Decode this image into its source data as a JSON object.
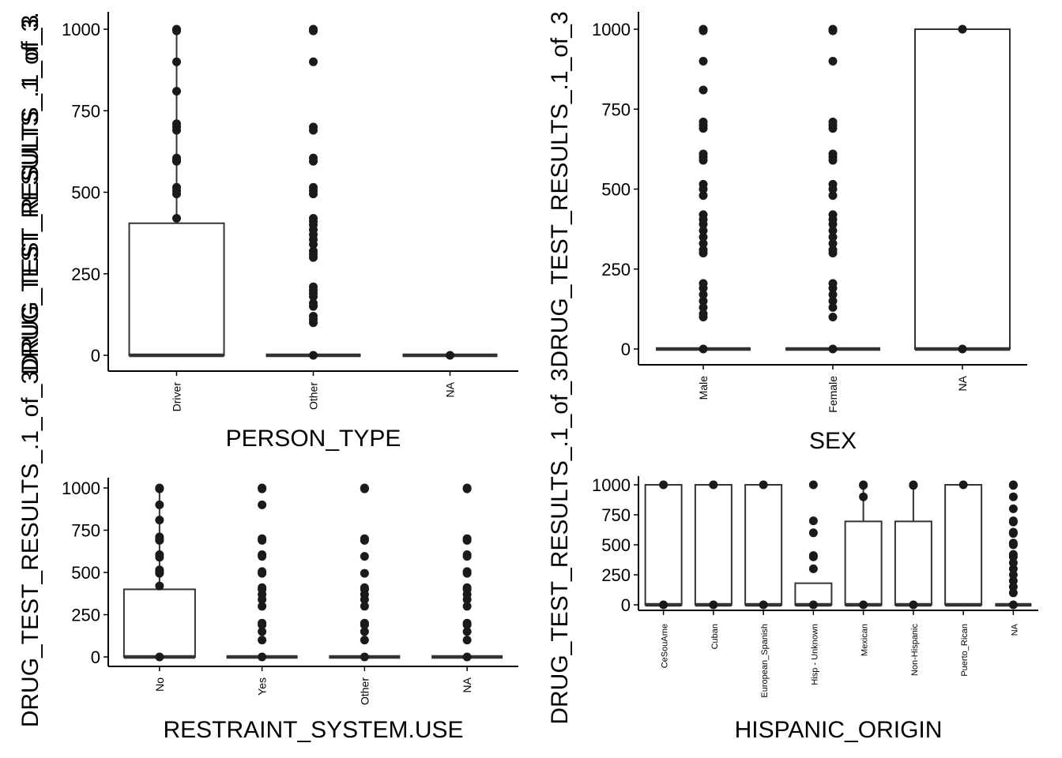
{
  "chart_data": [
    {
      "type": "box",
      "xlabel": "PERSON_TYPE",
      "ylabel": "DRUG_TEST_RESULTS_.1_of_3.",
      "ylim": [
        -45,
        1050
      ],
      "yticks": [
        0,
        250,
        500,
        750,
        1000
      ],
      "categories": [
        "Driver",
        "Other",
        "NA"
      ],
      "boxes": [
        {
          "min": 0,
          "q1": 0,
          "median": 0,
          "q3": 405,
          "max": 1000,
          "outliers": [
            420,
            495,
            505,
            515,
            595,
            600,
            605,
            690,
            700,
            710,
            810,
            900,
            995,
            1000
          ]
        },
        {
          "min": 0,
          "q1": 0,
          "median": 0,
          "q3": 0,
          "max": 0,
          "outliers": [
            0,
            100,
            110,
            120,
            150,
            160,
            180,
            190,
            200,
            210,
            300,
            310,
            320,
            340,
            355,
            370,
            385,
            400,
            410,
            420,
            495,
            505,
            515,
            595,
            605,
            690,
            700,
            900,
            995,
            1000
          ]
        },
        {
          "min": 0,
          "q1": 0,
          "median": 0,
          "q3": 0,
          "max": 0,
          "outliers": [
            0
          ]
        }
      ]
    },
    {
      "type": "box",
      "xlabel": "SEX",
      "ylabel": "DRUG_TEST_RESULTS_.1_of_3",
      "ylim": [
        -45,
        1050
      ],
      "yticks": [
        0,
        250,
        500,
        750,
        1000
      ],
      "categories": [
        "Male",
        "Female",
        "NA"
      ],
      "boxes": [
        {
          "min": 0,
          "q1": 0,
          "median": 0,
          "q3": 0,
          "max": 0,
          "outliers": [
            0,
            100,
            110,
            130,
            150,
            170,
            190,
            205,
            300,
            310,
            330,
            350,
            370,
            390,
            405,
            420,
            480,
            500,
            515,
            590,
            600,
            610,
            690,
            700,
            710,
            810,
            900,
            995,
            1000
          ]
        },
        {
          "min": 0,
          "q1": 0,
          "median": 0,
          "q3": 0,
          "max": 0,
          "outliers": [
            0,
            100,
            130,
            150,
            170,
            190,
            205,
            300,
            310,
            330,
            350,
            370,
            390,
            405,
            420,
            480,
            500,
            515,
            590,
            600,
            610,
            690,
            700,
            710,
            900,
            995,
            1000
          ]
        },
        {
          "min": 0,
          "q1": 0,
          "median": 0,
          "q3": 1000,
          "max": 1000,
          "outliers": [
            0,
            1000
          ]
        }
      ]
    },
    {
      "type": "box",
      "xlabel": "RESTRAINT_SYSTEM.USE",
      "ylabel": "DRUG_TEST_RESULTS_.1_of_3DRUG_TEST_RESULTS_.1_of_3",
      "ylim": [
        -45,
        1050
      ],
      "yticks": [
        0,
        250,
        500,
        750,
        1000
      ],
      "categories": [
        "No",
        "Yes",
        "Other",
        "NA"
      ],
      "boxes": [
        {
          "min": 0,
          "q1": 0,
          "median": 0,
          "q3": 400,
          "max": 1000,
          "outliers": [
            0,
            420,
            495,
            505,
            515,
            590,
            605,
            690,
            700,
            710,
            810,
            900,
            995,
            1000
          ]
        },
        {
          "min": 0,
          "q1": 0,
          "median": 0,
          "q3": 0,
          "max": 0,
          "outliers": [
            0,
            100,
            150,
            190,
            200,
            300,
            340,
            370,
            400,
            410,
            495,
            505,
            595,
            605,
            690,
            700,
            900,
            995,
            1000
          ]
        },
        {
          "min": 0,
          "q1": 0,
          "median": 0,
          "q3": 0,
          "max": 0,
          "outliers": [
            0,
            100,
            150,
            190,
            200,
            300,
            340,
            370,
            400,
            410,
            495,
            595,
            690,
            700,
            995,
            1000
          ]
        },
        {
          "min": 0,
          "q1": 0,
          "median": 0,
          "q3": 0,
          "max": 0,
          "outliers": [
            0,
            100,
            150,
            190,
            200,
            300,
            340,
            370,
            400,
            410,
            495,
            505,
            595,
            605,
            690,
            700,
            995,
            1000
          ]
        }
      ]
    },
    {
      "type": "box",
      "xlabel": "HISPANIC_ORIGIN",
      "ylabel": "DRUG_TEST_RESULTS_.1_of_3",
      "ylim": [
        -45,
        1050
      ],
      "yticks": [
        0,
        250,
        500,
        750,
        1000
      ],
      "categories": [
        "CeSouAme",
        "Cuban",
        "European_Spanish",
        "Hisp - Unknown",
        "Mexican",
        "Non-Hispanic",
        "Puerto_Rican",
        "NA"
      ],
      "boxes": [
        {
          "min": 0,
          "q1": 0,
          "median": 0,
          "q3": 1000,
          "max": 1000,
          "outliers": [
            0,
            1000
          ]
        },
        {
          "min": 0,
          "q1": 0,
          "median": 0,
          "q3": 1000,
          "max": 1000,
          "outliers": [
            0,
            1000
          ]
        },
        {
          "min": 0,
          "q1": 0,
          "median": 0,
          "q3": 1000,
          "max": 1000,
          "outliers": [
            0,
            1000
          ]
        },
        {
          "min": 0,
          "q1": 0,
          "median": 0,
          "q3": 180,
          "max": 180,
          "outliers": [
            0,
            300,
            400,
            410,
            600,
            700,
            1000
          ]
        },
        {
          "min": 0,
          "q1": 0,
          "median": 0,
          "q3": 695,
          "max": 1000,
          "outliers": [
            0,
            900,
            995,
            1000
          ]
        },
        {
          "min": 0,
          "q1": 0,
          "median": 0,
          "q3": 695,
          "max": 1000,
          "outliers": [
            0,
            995,
            1000
          ]
        },
        {
          "min": 0,
          "q1": 0,
          "median": 0,
          "q3": 1000,
          "max": 1000,
          "outliers": [
            1000
          ]
        },
        {
          "min": 0,
          "q1": 0,
          "median": 0,
          "q3": 0,
          "max": 0,
          "outliers": [
            0,
            100,
            150,
            200,
            250,
            300,
            350,
            400,
            420,
            500,
            515,
            595,
            605,
            690,
            700,
            800,
            900,
            995,
            1000
          ]
        }
      ]
    }
  ]
}
